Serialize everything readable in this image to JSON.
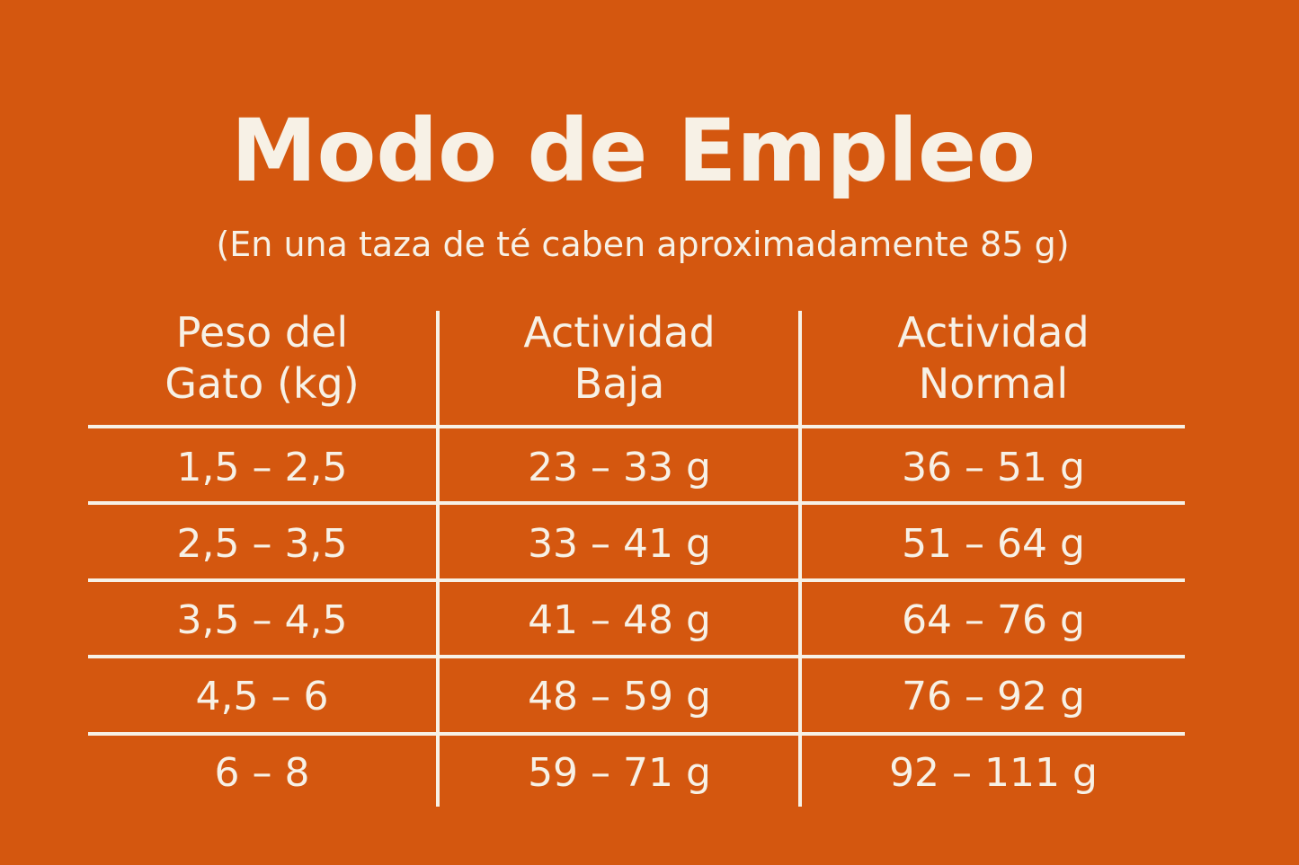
{
  "title": "Modo de Empleo",
  "subtitle": "(En una taza de té caben aproximadamente 85 g)",
  "colors": {
    "background": "#D4570F",
    "text": "#F7F1E6"
  },
  "table": {
    "headers": [
      {
        "line1": "Peso del",
        "line2": "Gato (kg)"
      },
      {
        "line1": "Actividad",
        "line2": "Baja"
      },
      {
        "line1": "Actividad",
        "line2": "Normal"
      }
    ],
    "rows": [
      [
        "1,5 – 2,5",
        "23 – 33 g",
        "36 – 51 g"
      ],
      [
        "2,5 – 3,5",
        "33 – 41 g",
        "51 – 64 g"
      ],
      [
        "3,5 – 4,5",
        "41 – 48 g",
        "64 – 76 g"
      ],
      [
        "4,5 – 6",
        "48 – 59 g",
        "76 – 92 g"
      ],
      [
        "6 – 8",
        "59 – 71 g",
        "92 – 111 g"
      ]
    ]
  }
}
